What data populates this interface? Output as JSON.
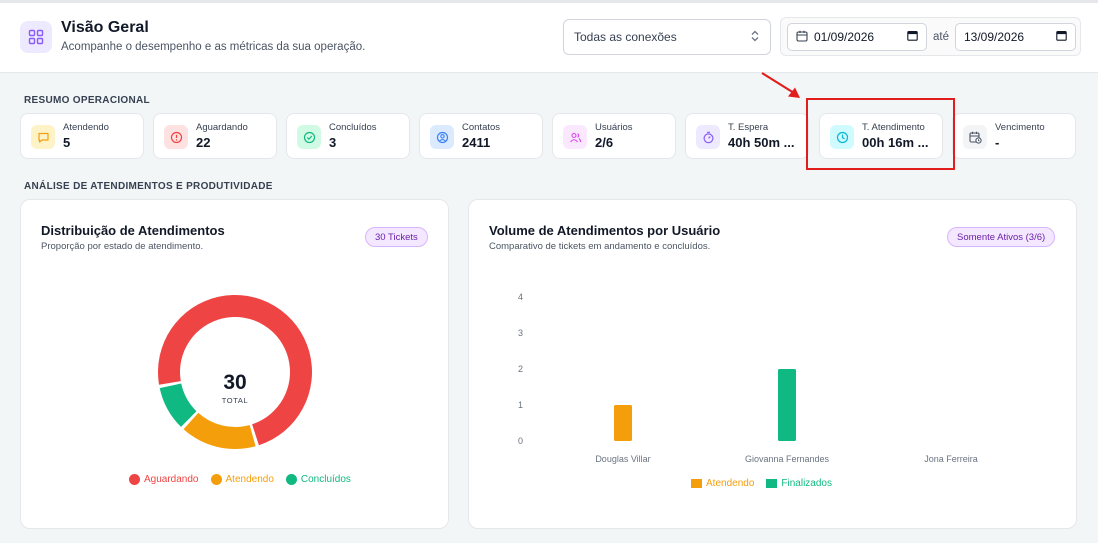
{
  "header": {
    "title": "Visão Geral",
    "subtitle": "Acompanhe o desempenho e as métricas da sua operação.",
    "connection_select": "Todas as conexões",
    "date_from": "01/09/2026",
    "date_to_label": "até",
    "date_to": "13/09/2026"
  },
  "sections": {
    "summary": "RESUMO OPERACIONAL",
    "analysis": "ANÁLISE DE ATENDIMENTOS E PRODUTIVIDADE"
  },
  "kpis": [
    {
      "label": "Atendendo",
      "value": "5",
      "icon": "chat-icon",
      "color": "#f59e0b"
    },
    {
      "label": "Aguardando",
      "value": "22",
      "icon": "alert-circle-icon",
      "color": "#ef4444"
    },
    {
      "label": "Concluídos",
      "value": "3",
      "icon": "check-circle-icon",
      "color": "#10b981"
    },
    {
      "label": "Contatos",
      "value": "2411",
      "icon": "user-circle-icon",
      "color": "#3b82f6"
    },
    {
      "label": "Usuários",
      "value": "2/6",
      "icon": "users-icon",
      "color": "#d946ef"
    },
    {
      "label": "T. Espera",
      "value": "40h 50m ...",
      "icon": "timer-icon",
      "color": "#8b5cf6"
    },
    {
      "label": "T. Atendimento",
      "value": "00h 16m ...",
      "icon": "clock-icon",
      "color": "#06b6d4"
    },
    {
      "label": "Vencimento",
      "value": "-",
      "icon": "calendar-clock-icon",
      "color": "#6b7280"
    }
  ],
  "donut_panel": {
    "title": "Distribuição de Atendimentos",
    "subtitle": "Proporção por estado de atendimento.",
    "badge": "30 Tickets",
    "total_value": "30",
    "total_label": "TOTAL"
  },
  "bar_panel": {
    "title": "Volume de Atendimentos por Usuário",
    "subtitle": "Comparativo de tickets em andamento e concluídos.",
    "badge": "Somente Ativos (3/6)"
  },
  "chart_data": [
    {
      "type": "pie",
      "title": "Distribuição de Atendimentos",
      "labels": [
        "Aguardando",
        "Atendendo",
        "Concluídos"
      ],
      "values": [
        22,
        5,
        3
      ],
      "colors": [
        "#ef4444",
        "#f59e0b",
        "#10b981"
      ]
    },
    {
      "type": "bar",
      "title": "Volume de Atendimentos por Usuário",
      "categories": [
        "Douglas Villar",
        "Giovanna Fernandes",
        "Jona Ferreira"
      ],
      "series": [
        {
          "name": "Atendendo",
          "values": [
            1,
            0,
            0
          ],
          "color": "#f59e0b"
        },
        {
          "name": "Finalizados",
          "values": [
            0,
            2,
            0
          ],
          "color": "#10b981"
        }
      ],
      "yticks": [
        "0",
        "1",
        "2",
        "3",
        "4"
      ],
      "ylim": [
        0,
        4
      ],
      "legend": "bottom"
    }
  ]
}
